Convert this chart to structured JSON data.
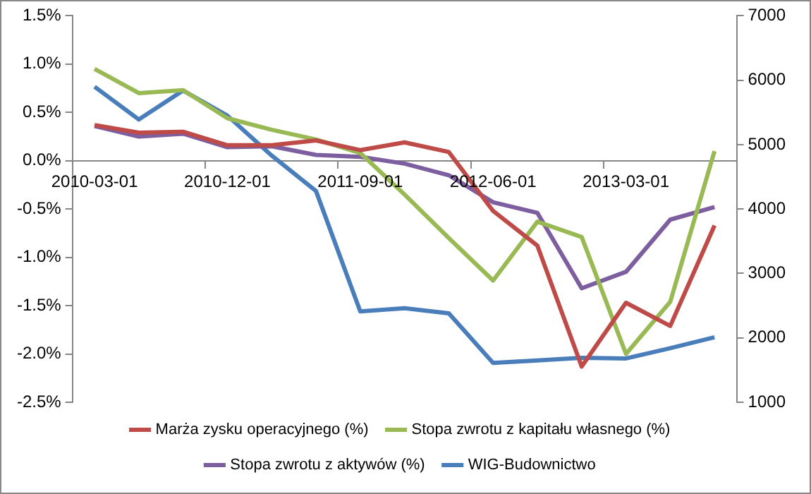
{
  "chart_data": {
    "type": "line",
    "categories": [
      "2010-03-01",
      null,
      null,
      "2010-12-01",
      null,
      null,
      "2011-09-01",
      null,
      null,
      "2012-06-01",
      null,
      null,
      "2013-03-01",
      null,
      null
    ],
    "series": [
      {
        "name": "Marża zysku operacyjnego (%)",
        "color": "#be4b48",
        "values": [
          0.37,
          0.29,
          0.3,
          0.16,
          0.16,
          0.21,
          0.11,
          0.19,
          0.09,
          -0.52,
          -0.88,
          -2.13,
          -1.47,
          -1.71,
          -0.67
        ]
      },
      {
        "name": "Stopa zwrotu z kapitału własnego (%)",
        "color": "#98b954",
        "values": [
          0.95,
          0.7,
          0.73,
          0.44,
          0.32,
          0.22,
          0.08,
          -0.35,
          -0.8,
          -1.24,
          -0.63,
          -0.79,
          -2.0,
          -1.46,
          0.1
        ]
      },
      {
        "name": "Stopa zwrotu z aktywów (%)",
        "color": "#7d5fa0",
        "values": [
          0.36,
          0.25,
          0.28,
          0.14,
          0.15,
          0.06,
          0.04,
          -0.03,
          -0.15,
          -0.43,
          -0.54,
          -1.32,
          -1.15,
          -0.61,
          -0.48
        ]
      },
      {
        "name": "WIG-Budownictwo",
        "color": "#4a7ebb",
        "axis": "y2",
        "values": [
          5900,
          5390,
          5840,
          5450,
          4830,
          4280,
          2410,
          2460,
          2380,
          1610,
          1650,
          1690,
          1680,
          1840,
          2010
        ]
      }
    ],
    "ylim": [
      -2.5,
      1.5
    ],
    "yticks": [
      {
        "value": -2.5,
        "label": "-2.5%"
      },
      {
        "value": -2,
        "label": "-2.0%"
      },
      {
        "value": -1.5,
        "label": "-1.5%"
      },
      {
        "value": -1,
        "label": "-1.0%"
      },
      {
        "value": -0.5,
        "label": "-0.5%"
      },
      {
        "value": 0,
        "label": "0.0%"
      },
      {
        "value": 0.5,
        "label": "0.5%"
      },
      {
        "value": 1,
        "label": "1.0%"
      },
      {
        "value": 1.5,
        "label": "1.5%"
      }
    ],
    "y2lim": [
      1000,
      7000
    ],
    "y2ticks": [
      1000,
      2000,
      3000,
      4000,
      5000,
      6000,
      7000
    ],
    "legend": "bottom",
    "marker": "none",
    "line_style": "solid"
  }
}
